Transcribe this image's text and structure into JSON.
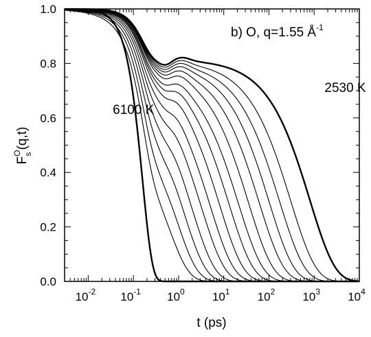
{
  "chart_data": {
    "type": "line",
    "xscale": "log",
    "xlim": [
      0.003,
      10000
    ],
    "ylim": [
      0.0,
      1.0
    ],
    "xlabel": "t (ps)",
    "ylabel": "F_s^O(q,t)",
    "ylabel_parts": {
      "base": "F",
      "sub": "s",
      "sup": "O",
      "args": "(q,t)"
    },
    "grid": false,
    "legend": "none",
    "x_ticks": [
      {
        "base": "10",
        "exp": "-2",
        "value": 0.01
      },
      {
        "base": "10",
        "exp": "-1",
        "value": 0.1
      },
      {
        "base": "10",
        "exp": "0",
        "value": 1
      },
      {
        "base": "10",
        "exp": "1",
        "value": 10
      },
      {
        "base": "10",
        "exp": "2",
        "value": 100
      },
      {
        "base": "10",
        "exp": "3",
        "value": 1000
      },
      {
        "base": "10",
        "exp": "4",
        "value": 10000
      }
    ],
    "y_ticks": [
      "0.0",
      "0.2",
      "0.4",
      "0.6",
      "0.8",
      "1.0"
    ],
    "y_tick_values": [
      0.0,
      0.2,
      0.4,
      0.6,
      0.8,
      1.0
    ],
    "panel_label": {
      "text": "b) O, q=1.55 Å",
      "sup": "-1"
    },
    "annotations": [
      {
        "text": "6100 K",
        "x": 0.035,
        "y": 0.63
      },
      {
        "text": "2530 K",
        "x": 1700,
        "y": 0.71
      }
    ],
    "series": [
      {
        "tau": 0.33,
        "plateau": 0.0,
        "beta": 1.0,
        "bold": true
      },
      {
        "tau": 0.55,
        "plateau": 0.6,
        "beta": 0.92,
        "bold": false
      },
      {
        "tau": 0.85,
        "plateau": 0.65,
        "beta": 0.9,
        "bold": false
      },
      {
        "tau": 1.3,
        "plateau": 0.69,
        "beta": 0.88,
        "bold": false
      },
      {
        "tau": 2.0,
        "plateau": 0.72,
        "beta": 0.86,
        "bold": false
      },
      {
        "tau": 3.2,
        "plateau": 0.74,
        "beta": 0.84,
        "bold": false
      },
      {
        "tau": 5.0,
        "plateau": 0.755,
        "beta": 0.83,
        "bold": false
      },
      {
        "tau": 8.0,
        "plateau": 0.77,
        "beta": 0.82,
        "bold": false
      },
      {
        "tau": 13.0,
        "plateau": 0.775,
        "beta": 0.81,
        "bold": false
      },
      {
        "tau": 21.0,
        "plateau": 0.78,
        "beta": 0.8,
        "bold": false
      },
      {
        "tau": 35.0,
        "plateau": 0.79,
        "beta": 0.8,
        "bold": false
      },
      {
        "tau": 60.0,
        "plateau": 0.795,
        "beta": 0.79,
        "bold": false
      },
      {
        "tau": 100.0,
        "plateau": 0.8,
        "beta": 0.79,
        "bold": false
      },
      {
        "tau": 170.0,
        "plateau": 0.805,
        "beta": 0.78,
        "bold": false
      },
      {
        "tau": 300.0,
        "plateau": 0.81,
        "beta": 0.78,
        "bold": false
      },
      {
        "tau": 800.0,
        "plateau": 0.815,
        "beta": 0.78,
        "bold": true
      }
    ]
  }
}
